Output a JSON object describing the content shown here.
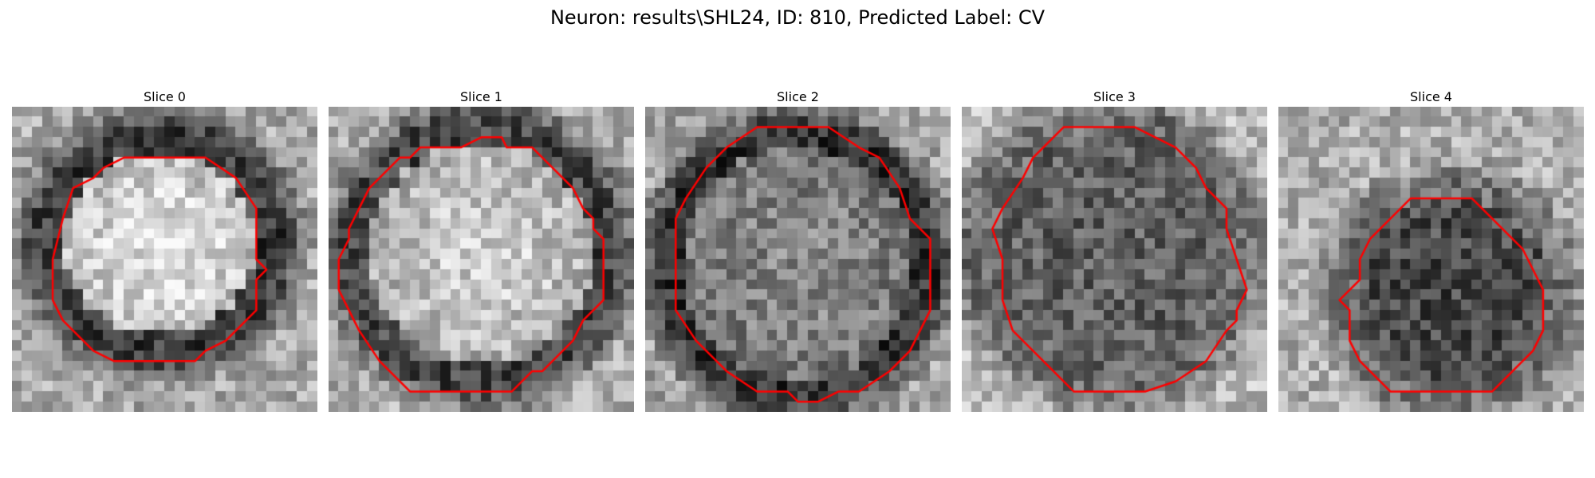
{
  "figure": {
    "title": "Neuron: results\\SHL24, ID: 810, Predicted Label: CV"
  },
  "contour_color": "#ff0000",
  "slices": [
    {
      "label": "Slice 0",
      "center_brightness": "bright",
      "ring_dark": true
    },
    {
      "label": "Slice 1",
      "center_brightness": "bright",
      "ring_dark": true
    },
    {
      "label": "Slice 2",
      "center_brightness": "mid",
      "ring_dark": true
    },
    {
      "label": "Slice 3",
      "center_brightness": "dark",
      "ring_dark": false
    },
    {
      "label": "Slice 4",
      "center_brightness": "dark",
      "ring_dark": false
    }
  ]
}
